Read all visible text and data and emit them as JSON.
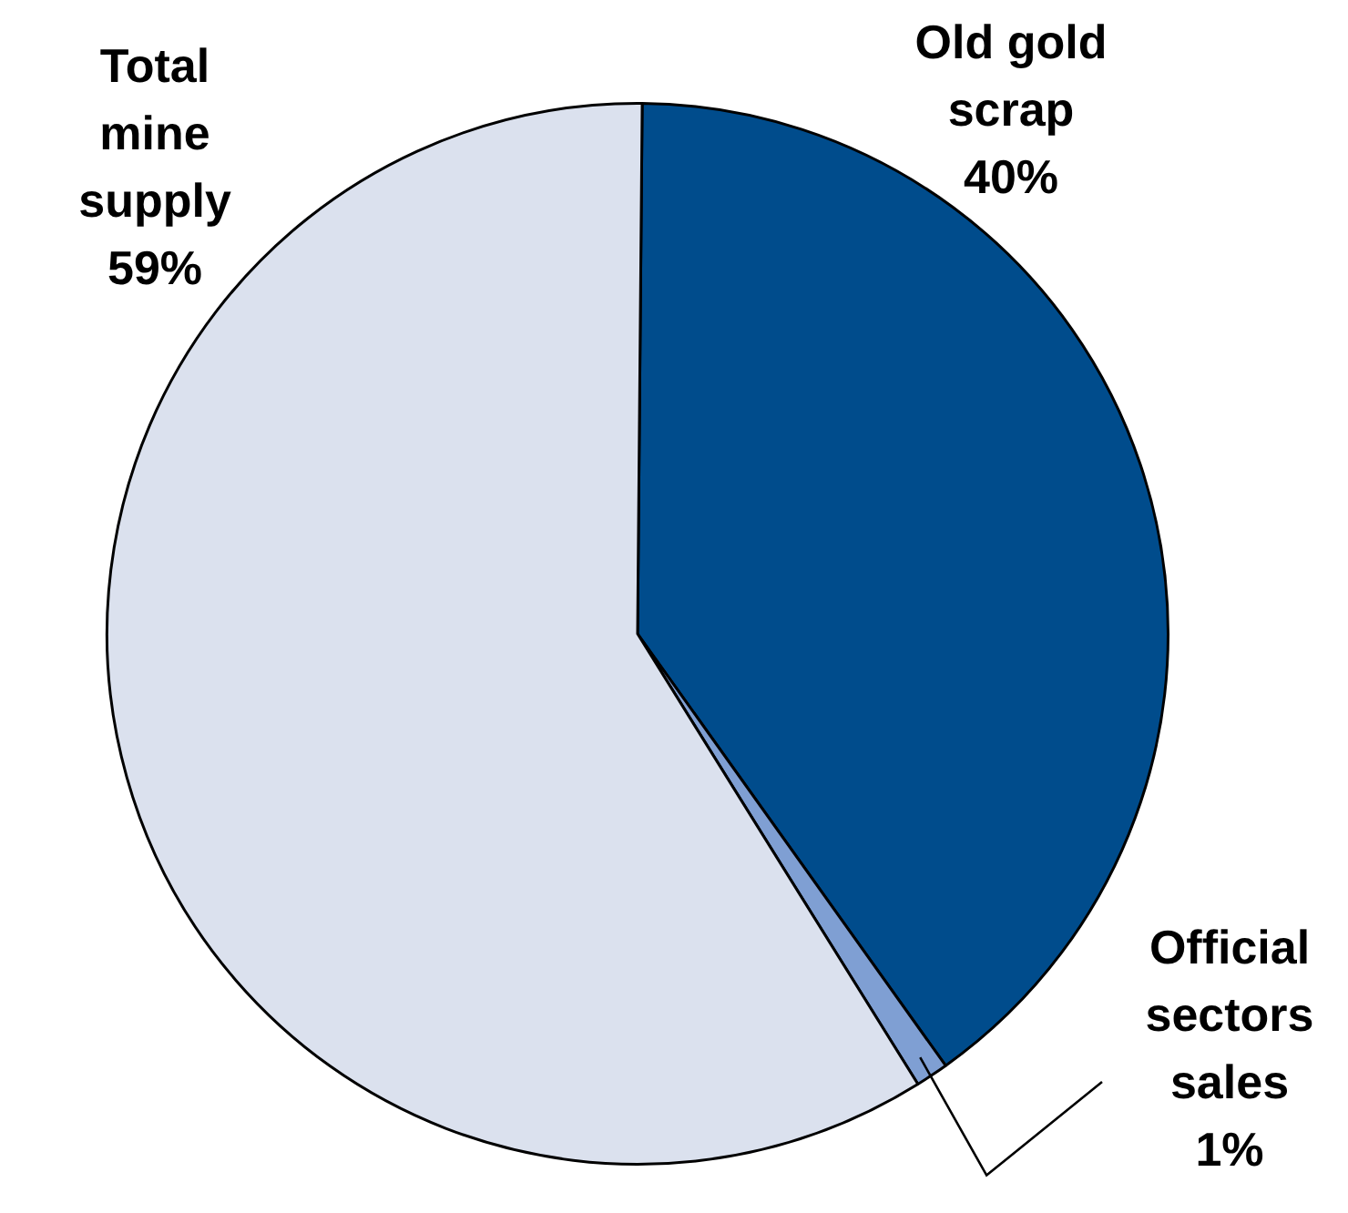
{
  "chart_data": {
    "type": "pie",
    "categories": [
      "Old gold scrap",
      "Official sectors sales",
      "Total mine supply"
    ],
    "values": [
      40,
      1,
      59
    ],
    "colors": [
      "#004c8c",
      "#7f9fd3",
      "#dbe1ee"
    ],
    "value_labels": [
      "40%",
      "1%",
      "59%"
    ],
    "legend": false
  }
}
